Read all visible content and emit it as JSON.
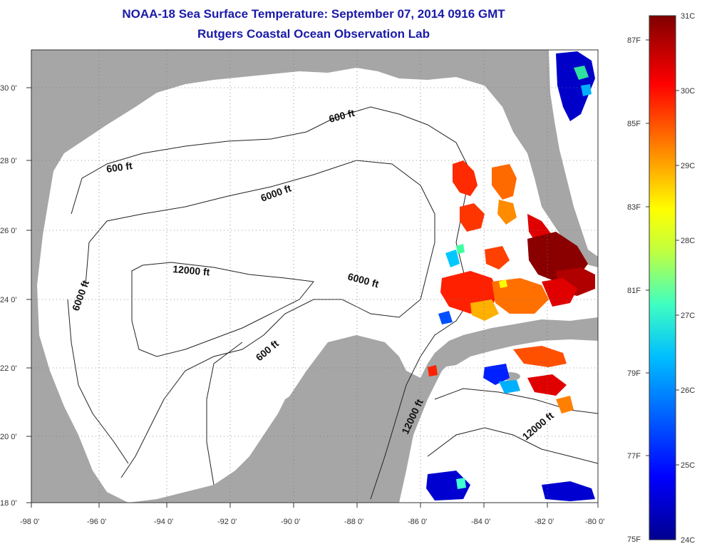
{
  "title": {
    "line1": "NOAA-18 Sea Surface Temperature:  September 07, 2014 0916 GMT",
    "line2": "Rutgers Coastal Ocean Observation Lab"
  },
  "map": {
    "lon_labels": [
      "-98 0'",
      "-96 0'",
      "-94 0'",
      "-92 0'",
      "-90 0'",
      "-88 0'",
      "-86 0'",
      "-84 0'",
      "-82 0'",
      "-80 0'"
    ],
    "lat_labels": [
      "30 0'",
      "28 0'",
      "26 0'",
      "24 0'",
      "22 0'",
      "20 0'",
      "18 0'"
    ],
    "contour_labels": [
      "600 ft",
      "600 ft",
      "6000 ft",
      "6000 ft",
      "12000 ft",
      "6000 ft",
      "600 ft",
      "12000 ft",
      "12000 ft"
    ],
    "colors": {
      "land": "#a6a6a6",
      "ocean": "#ffffff",
      "grid": "#555555"
    }
  },
  "colorbar": {
    "fahrenheit_labels": [
      "87F",
      "85F",
      "83F",
      "81F",
      "79F",
      "77F",
      "75F"
    ],
    "celsius_labels": [
      "31C",
      "30C",
      "29C",
      "28C",
      "27C",
      "26C",
      "25C",
      "24C"
    ],
    "range_c": [
      24,
      31
    ],
    "range_f": [
      75,
      87.8
    ],
    "colors": [
      "#00008f",
      "#0000ff",
      "#0080ff",
      "#00ffff",
      "#80ff80",
      "#ffff00",
      "#ff8000",
      "#ff0000",
      "#800000"
    ]
  }
}
